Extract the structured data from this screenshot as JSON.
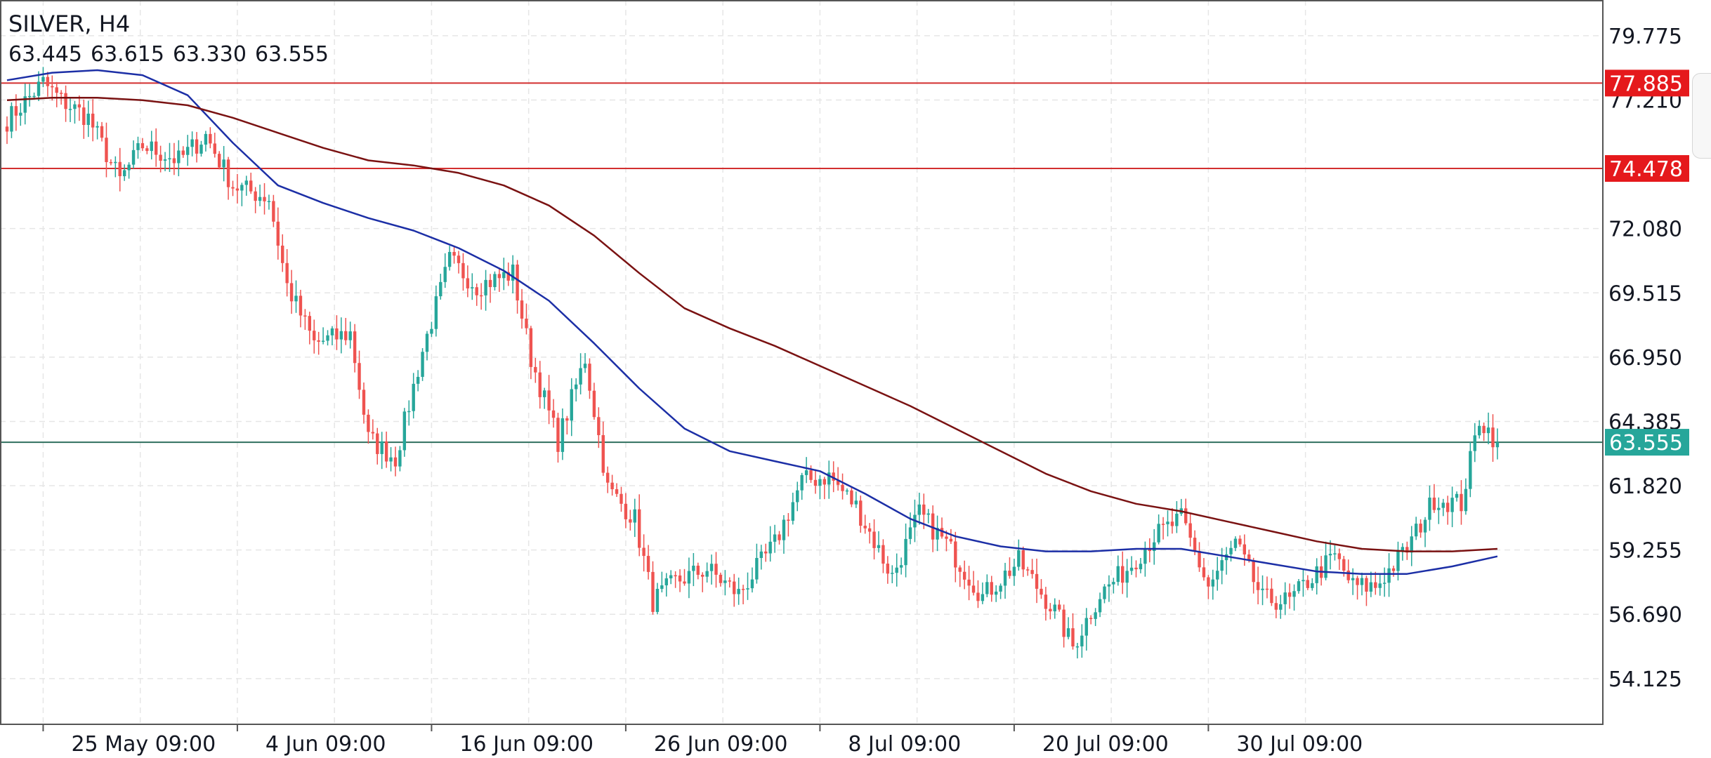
{
  "header": {
    "symbol_timeframe": "SILVER, H4",
    "ohlc": [
      "63.445",
      "63.615",
      "63.330",
      "63.555"
    ]
  },
  "colors": {
    "up": "#26a69a",
    "down": "#ef5350",
    "ma_fast": "#1c2fa6",
    "ma_slow": "#7a1212",
    "hline": "#d32f2f",
    "last_line": "#2f6f5e",
    "last_label": "#26a69a",
    "level_label": "#e5191c",
    "grid": "#e6e6e6",
    "border": "#555555",
    "text": "#131722"
  },
  "chart_data": {
    "type": "candlestick",
    "grid": true,
    "ylim": [
      52.3,
      81.2
    ],
    "y_ticks": [
      "79.775",
      "77.210",
      "72.080",
      "69.515",
      "66.950",
      "64.385",
      "61.820",
      "59.255",
      "56.690",
      "54.125"
    ],
    "x_ticks": [
      "25 May 09:00",
      "4 Jun 09:00",
      "16 Jun 09:00",
      "26 Jun 09:00",
      "8 Jul 09:00",
      "20 Jul 09:00",
      "30 Jul 09:00"
    ],
    "x_tick_index": [
      8,
      51,
      94,
      137,
      180,
      223,
      266
    ],
    "horizontal_levels": [
      {
        "value": 77.885,
        "label": "77.885"
      },
      {
        "value": 74.478,
        "label": "74.478"
      }
    ],
    "last_price": {
      "value": 63.555,
      "label": "63.555"
    },
    "close_anchors": [
      [
        0,
        76.4
      ],
      [
        8,
        77.9
      ],
      [
        12,
        77.2
      ],
      [
        18,
        76.5
      ],
      [
        25,
        74.0
      ],
      [
        30,
        75.4
      ],
      [
        38,
        74.8
      ],
      [
        44,
        75.8
      ],
      [
        50,
        73.8
      ],
      [
        58,
        73.3
      ],
      [
        62,
        69.8
      ],
      [
        68,
        67.5
      ],
      [
        76,
        67.9
      ],
      [
        80,
        63.7
      ],
      [
        86,
        62.9
      ],
      [
        92,
        67.2
      ],
      [
        98,
        70.8
      ],
      [
        104,
        69.8
      ],
      [
        112,
        70.3
      ],
      [
        116,
        66.9
      ],
      [
        122,
        63.6
      ],
      [
        128,
        66.9
      ],
      [
        133,
        61.7
      ],
      [
        139,
        60.5
      ],
      [
        143,
        57.2
      ],
      [
        148,
        58.0
      ],
      [
        155,
        58.5
      ],
      [
        162,
        57.5
      ],
      [
        170,
        59.5
      ],
      [
        176,
        62.0
      ],
      [
        182,
        62.2
      ],
      [
        188,
        61.0
      ],
      [
        196,
        58.2
      ],
      [
        202,
        60.7
      ],
      [
        208,
        59.5
      ],
      [
        216,
        57.4
      ],
      [
        224,
        58.8
      ],
      [
        232,
        56.8
      ],
      [
        236,
        55.4
      ],
      [
        242,
        57.5
      ],
      [
        248,
        58.5
      ],
      [
        254,
        59.8
      ],
      [
        260,
        60.5
      ],
      [
        266,
        57.8
      ],
      [
        272,
        59.5
      ],
      [
        278,
        57.3
      ],
      [
        284,
        57.2
      ],
      [
        288,
        58.0
      ],
      [
        294,
        59.0
      ],
      [
        298,
        57.8
      ],
      [
        303,
        57.8
      ],
      [
        310,
        59.3
      ],
      [
        316,
        61.3
      ],
      [
        322,
        61.1
      ],
      [
        326,
        64.5
      ],
      [
        330,
        63.555
      ]
    ],
    "series": [
      {
        "name": "",
        "color_key": "ma_fast",
        "x": [
          0,
          10,
          20,
          30,
          40,
          50,
          60,
          70,
          80,
          90,
          100,
          110,
          120,
          130,
          140,
          150,
          160,
          170,
          180,
          190,
          200,
          210,
          220,
          230,
          240,
          250,
          260,
          270,
          280,
          290,
          300,
          310,
          320,
          330
        ],
        "values": [
          78.0,
          78.3,
          78.4,
          78.2,
          77.4,
          75.5,
          73.8,
          73.1,
          72.5,
          72.0,
          71.3,
          70.4,
          69.2,
          67.5,
          65.7,
          64.1,
          63.2,
          62.8,
          62.4,
          61.5,
          60.5,
          59.8,
          59.4,
          59.2,
          59.2,
          59.3,
          59.3,
          59.0,
          58.7,
          58.4,
          58.3,
          58.3,
          58.6,
          59.0
        ]
      },
      {
        "name": "",
        "color_key": "ma_slow",
        "x": [
          0,
          10,
          20,
          30,
          40,
          50,
          60,
          70,
          80,
          90,
          100,
          110,
          120,
          130,
          140,
          150,
          160,
          170,
          180,
          190,
          200,
          210,
          220,
          230,
          240,
          250,
          260,
          270,
          280,
          290,
          300,
          310,
          320,
          330
        ],
        "values": [
          77.2,
          77.3,
          77.3,
          77.2,
          77.0,
          76.5,
          75.9,
          75.3,
          74.8,
          74.6,
          74.3,
          73.8,
          73.0,
          71.8,
          70.3,
          68.9,
          68.1,
          67.4,
          66.6,
          65.8,
          65.0,
          64.1,
          63.2,
          62.3,
          61.6,
          61.1,
          60.8,
          60.4,
          60.0,
          59.6,
          59.3,
          59.2,
          59.2,
          59.3
        ]
      }
    ]
  }
}
